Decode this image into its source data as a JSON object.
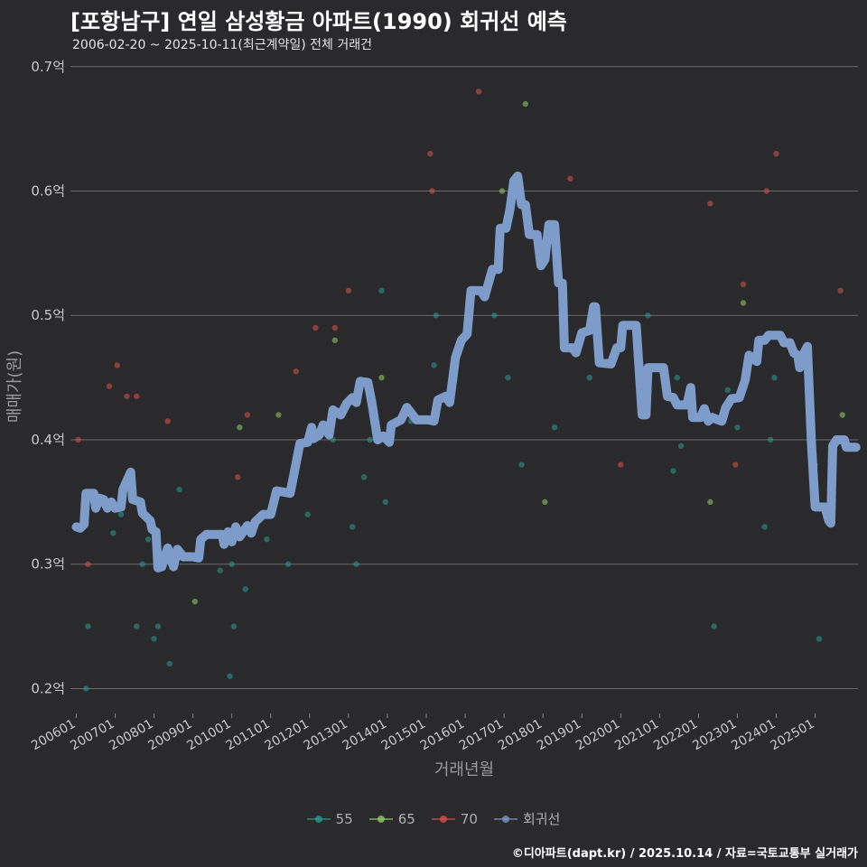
{
  "header": {
    "title": "[포항남구] 연일 삼성황금 아파트(1990) 회귀선 예측",
    "subtitle": "2006-02-20 ~ 2025-10-11(최근계약일) 전체 거래건"
  },
  "footer": {
    "credit": "©디아파트(dapt.kr) / 2025.10.14 / 자료=국토교통부 실거래가"
  },
  "colors": {
    "s55": "#2a9d8f",
    "s65": "#8fd16a",
    "s70": "#d9534f",
    "regression": "#7d9cca"
  },
  "chart_data": {
    "type": "scatter",
    "title": "[포항남구] 연일 삼성황금 아파트(1990) 회귀선 예측",
    "xlabel": "거래년월",
    "ylabel": "매매가(원)",
    "ylim": [
      0.18,
      0.71
    ],
    "xlim": [
      2005.85,
      2026.1
    ],
    "yticks": [
      {
        "value": 0.2,
        "label": "0.2억"
      },
      {
        "value": 0.3,
        "label": "0.3억"
      },
      {
        "value": 0.4,
        "label": "0.4억"
      },
      {
        "value": 0.5,
        "label": "0.5억"
      },
      {
        "value": 0.6,
        "label": "0.6억"
      },
      {
        "value": 0.7,
        "label": "0.7억"
      }
    ],
    "xticks": [
      {
        "value": 2006.0,
        "label": "200601"
      },
      {
        "value": 2007.0,
        "label": "200701"
      },
      {
        "value": 2008.0,
        "label": "200801"
      },
      {
        "value": 2009.0,
        "label": "200901"
      },
      {
        "value": 2010.0,
        "label": "201001"
      },
      {
        "value": 2011.0,
        "label": "201101"
      },
      {
        "value": 2012.0,
        "label": "201201"
      },
      {
        "value": 2013.0,
        "label": "201301"
      },
      {
        "value": 2014.0,
        "label": "201401"
      },
      {
        "value": 2015.0,
        "label": "201501"
      },
      {
        "value": 2016.0,
        "label": "201601"
      },
      {
        "value": 2017.0,
        "label": "201701"
      },
      {
        "value": 2018.0,
        "label": "201801"
      },
      {
        "value": 2019.0,
        "label": "201901"
      },
      {
        "value": 2020.0,
        "label": "202001"
      },
      {
        "value": 2021.0,
        "label": "202101"
      },
      {
        "value": 2022.0,
        "label": "202201"
      },
      {
        "value": 2023.0,
        "label": "202301"
      },
      {
        "value": 2024.0,
        "label": "202401"
      },
      {
        "value": 2025.0,
        "label": "202501"
      }
    ],
    "legend": [
      {
        "name": "55",
        "color": "#2a9d8f",
        "line": true
      },
      {
        "name": "65",
        "color": "#8fd16a",
        "line": true
      },
      {
        "name": "70",
        "color": "#d9534f",
        "line": true
      },
      {
        "name": "회귀선",
        "color": "#7d9cca",
        "line": true
      }
    ],
    "series": [
      {
        "name": "55",
        "color": "#2a9d8f",
        "points": [
          [
            2006.25,
            0.2
          ],
          [
            2006.3,
            0.25
          ],
          [
            2006.95,
            0.325
          ],
          [
            2007.15,
            0.34
          ],
          [
            2007.55,
            0.25
          ],
          [
            2007.7,
            0.3
          ],
          [
            2007.85,
            0.32
          ],
          [
            2008.0,
            0.24
          ],
          [
            2008.1,
            0.25
          ],
          [
            2008.4,
            0.22
          ],
          [
            2008.65,
            0.36
          ],
          [
            2009.7,
            0.295
          ],
          [
            2009.95,
            0.21
          ],
          [
            2010.0,
            0.3
          ],
          [
            2010.05,
            0.25
          ],
          [
            2010.35,
            0.28
          ],
          [
            2010.9,
            0.32
          ],
          [
            2011.45,
            0.3
          ],
          [
            2011.95,
            0.34
          ],
          [
            2012.05,
            0.4
          ],
          [
            2012.6,
            0.4
          ],
          [
            2013.1,
            0.33
          ],
          [
            2013.2,
            0.3
          ],
          [
            2013.4,
            0.37
          ],
          [
            2013.55,
            0.4
          ],
          [
            2013.75,
            0.4
          ],
          [
            2013.85,
            0.52
          ],
          [
            2013.95,
            0.35
          ],
          [
            2014.0,
            0.4
          ],
          [
            2014.6,
            0.415
          ],
          [
            2015.2,
            0.46
          ],
          [
            2015.25,
            0.5
          ],
          [
            2016.05,
            0.495
          ],
          [
            2016.75,
            0.5
          ],
          [
            2017.1,
            0.45
          ],
          [
            2017.45,
            0.38
          ],
          [
            2018.3,
            0.41
          ],
          [
            2019.2,
            0.45
          ],
          [
            2020.7,
            0.5
          ],
          [
            2021.35,
            0.375
          ],
          [
            2021.55,
            0.395
          ],
          [
            2021.45,
            0.45
          ],
          [
            2022.4,
            0.25
          ],
          [
            2022.75,
            0.44
          ],
          [
            2023.0,
            0.41
          ],
          [
            2023.7,
            0.33
          ],
          [
            2023.85,
            0.4
          ],
          [
            2023.95,
            0.45
          ],
          [
            2024.95,
            0.38
          ],
          [
            2025.0,
            0.38
          ],
          [
            2025.1,
            0.24
          ]
        ]
      },
      {
        "name": "65",
        "color": "#8fd16a",
        "points": [
          [
            2009.05,
            0.27
          ],
          [
            2010.2,
            0.41
          ],
          [
            2011.2,
            0.42
          ],
          [
            2012.65,
            0.48
          ],
          [
            2013.85,
            0.45
          ],
          [
            2016.95,
            0.6
          ],
          [
            2017.55,
            0.67
          ],
          [
            2018.05,
            0.35
          ],
          [
            2022.3,
            0.35
          ],
          [
            2023.15,
            0.51
          ],
          [
            2025.7,
            0.42
          ]
        ]
      },
      {
        "name": "70",
        "color": "#d9534f",
        "points": [
          [
            2006.05,
            0.4
          ],
          [
            2006.3,
            0.3
          ],
          [
            2006.85,
            0.443
          ],
          [
            2007.05,
            0.46
          ],
          [
            2007.3,
            0.435
          ],
          [
            2007.55,
            0.435
          ],
          [
            2008.35,
            0.415
          ],
          [
            2010.15,
            0.37
          ],
          [
            2010.4,
            0.42
          ],
          [
            2011.65,
            0.455
          ],
          [
            2012.15,
            0.49
          ],
          [
            2012.65,
            0.49
          ],
          [
            2013.0,
            0.52
          ],
          [
            2013.55,
            0.44
          ],
          [
            2015.1,
            0.63
          ],
          [
            2015.15,
            0.6
          ],
          [
            2016.35,
            0.68
          ],
          [
            2018.7,
            0.61
          ],
          [
            2020.0,
            0.38
          ],
          [
            2022.3,
            0.59
          ],
          [
            2022.95,
            0.38
          ],
          [
            2023.15,
            0.525
          ],
          [
            2023.75,
            0.6
          ],
          [
            2024.0,
            0.63
          ],
          [
            2025.65,
            0.52
          ]
        ]
      },
      {
        "name": "회귀선",
        "color": "#7d9cca",
        "line": [
          [
            2006.0,
            0.33
          ],
          [
            2006.1,
            0.329
          ],
          [
            2006.2,
            0.332
          ],
          [
            2006.25,
            0.357
          ],
          [
            2006.45,
            0.357
          ],
          [
            2006.5,
            0.345
          ],
          [
            2006.6,
            0.353
          ],
          [
            2006.7,
            0.352
          ],
          [
            2006.8,
            0.345
          ],
          [
            2006.9,
            0.35
          ],
          [
            2007.0,
            0.345
          ],
          [
            2007.15,
            0.346
          ],
          [
            2007.2,
            0.36
          ],
          [
            2007.4,
            0.374
          ],
          [
            2007.45,
            0.352
          ],
          [
            2007.65,
            0.35
          ],
          [
            2007.7,
            0.341
          ],
          [
            2007.9,
            0.335
          ],
          [
            2007.95,
            0.328
          ],
          [
            2008.05,
            0.326
          ],
          [
            2008.1,
            0.297
          ],
          [
            2008.2,
            0.298
          ],
          [
            2008.35,
            0.313
          ],
          [
            2008.5,
            0.298
          ],
          [
            2008.6,
            0.312
          ],
          [
            2008.75,
            0.306
          ],
          [
            2009.0,
            0.306
          ],
          [
            2009.15,
            0.305
          ],
          [
            2009.2,
            0.32
          ],
          [
            2009.35,
            0.324
          ],
          [
            2009.75,
            0.324
          ],
          [
            2009.8,
            0.316
          ],
          [
            2009.9,
            0.326
          ],
          [
            2010.0,
            0.318
          ],
          [
            2010.1,
            0.33
          ],
          [
            2010.2,
            0.322
          ],
          [
            2010.4,
            0.331
          ],
          [
            2010.5,
            0.325
          ],
          [
            2010.6,
            0.334
          ],
          [
            2010.8,
            0.34
          ],
          [
            2011.0,
            0.34
          ],
          [
            2011.15,
            0.359
          ],
          [
            2011.5,
            0.357
          ],
          [
            2011.75,
            0.397
          ],
          [
            2011.95,
            0.398
          ],
          [
            2012.05,
            0.41
          ],
          [
            2012.1,
            0.401
          ],
          [
            2012.25,
            0.404
          ],
          [
            2012.35,
            0.412
          ],
          [
            2012.5,
            0.404
          ],
          [
            2012.6,
            0.424
          ],
          [
            2012.8,
            0.42
          ],
          [
            2012.95,
            0.429
          ],
          [
            2013.1,
            0.434
          ],
          [
            2013.2,
            0.43
          ],
          [
            2013.3,
            0.447
          ],
          [
            2013.5,
            0.446
          ],
          [
            2013.6,
            0.43
          ],
          [
            2013.75,
            0.4
          ],
          [
            2013.9,
            0.403
          ],
          [
            2014.05,
            0.398
          ],
          [
            2014.1,
            0.412
          ],
          [
            2014.35,
            0.416
          ],
          [
            2014.5,
            0.426
          ],
          [
            2014.65,
            0.42
          ],
          [
            2014.75,
            0.416
          ],
          [
            2015.05,
            0.416
          ],
          [
            2015.2,
            0.415
          ],
          [
            2015.3,
            0.432
          ],
          [
            2015.5,
            0.435
          ],
          [
            2015.6,
            0.43
          ],
          [
            2015.75,
            0.466
          ],
          [
            2015.9,
            0.48
          ],
          [
            2016.05,
            0.485
          ],
          [
            2016.15,
            0.52
          ],
          [
            2016.4,
            0.52
          ],
          [
            2016.5,
            0.515
          ],
          [
            2016.7,
            0.537
          ],
          [
            2016.85,
            0.537
          ],
          [
            2016.9,
            0.57
          ],
          [
            2017.05,
            0.57
          ],
          [
            2017.15,
            0.585
          ],
          [
            2017.25,
            0.608
          ],
          [
            2017.35,
            0.612
          ],
          [
            2017.45,
            0.589
          ],
          [
            2017.55,
            0.589
          ],
          [
            2017.65,
            0.565
          ],
          [
            2017.85,
            0.565
          ],
          [
            2017.95,
            0.54
          ],
          [
            2018.05,
            0.545
          ],
          [
            2018.15,
            0.573
          ],
          [
            2018.3,
            0.573
          ],
          [
            2018.4,
            0.526
          ],
          [
            2018.5,
            0.526
          ],
          [
            2018.55,
            0.474
          ],
          [
            2018.75,
            0.474
          ],
          [
            2018.85,
            0.47
          ],
          [
            2019.0,
            0.486
          ],
          [
            2019.2,
            0.488
          ],
          [
            2019.3,
            0.507
          ],
          [
            2019.35,
            0.507
          ],
          [
            2019.45,
            0.462
          ],
          [
            2019.75,
            0.461
          ],
          [
            2019.9,
            0.474
          ],
          [
            2020.0,
            0.474
          ],
          [
            2020.05,
            0.492
          ],
          [
            2020.4,
            0.492
          ],
          [
            2020.55,
            0.42
          ],
          [
            2020.65,
            0.42
          ],
          [
            2020.7,
            0.458
          ],
          [
            2021.1,
            0.458
          ],
          [
            2021.2,
            0.435
          ],
          [
            2021.35,
            0.434
          ],
          [
            2021.45,
            0.428
          ],
          [
            2021.7,
            0.428
          ],
          [
            2021.8,
            0.442
          ],
          [
            2021.85,
            0.418
          ],
          [
            2022.05,
            0.418
          ],
          [
            2022.15,
            0.425
          ],
          [
            2022.25,
            0.415
          ],
          [
            2022.35,
            0.418
          ],
          [
            2022.5,
            0.416
          ],
          [
            2022.6,
            0.415
          ],
          [
            2022.7,
            0.426
          ],
          [
            2022.85,
            0.433
          ],
          [
            2023.05,
            0.434
          ],
          [
            2023.2,
            0.448
          ],
          [
            2023.3,
            0.468
          ],
          [
            2023.4,
            0.465
          ],
          [
            2023.5,
            0.463
          ],
          [
            2023.55,
            0.48
          ],
          [
            2023.7,
            0.48
          ],
          [
            2023.8,
            0.484
          ],
          [
            2024.1,
            0.484
          ],
          [
            2024.2,
            0.478
          ],
          [
            2024.35,
            0.478
          ],
          [
            2024.45,
            0.47
          ],
          [
            2024.55,
            0.468
          ],
          [
            2024.6,
            0.458
          ],
          [
            2024.7,
            0.469
          ],
          [
            2024.8,
            0.475
          ],
          [
            2024.9,
            0.4
          ],
          [
            2025.0,
            0.346
          ],
          [
            2025.25,
            0.346
          ],
          [
            2025.35,
            0.335
          ],
          [
            2025.4,
            0.333
          ],
          [
            2025.45,
            0.395
          ],
          [
            2025.55,
            0.4
          ],
          [
            2025.75,
            0.4
          ],
          [
            2025.8,
            0.394
          ],
          [
            2026.05,
            0.394
          ]
        ]
      }
    ]
  }
}
